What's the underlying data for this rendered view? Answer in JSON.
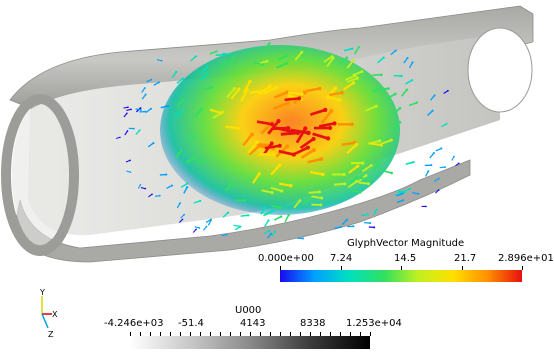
{
  "glyph_legend": {
    "title": "GlyphVector Magnitude",
    "labels": [
      "0.000e+00",
      "7.24",
      "14.5",
      "21.7",
      "2.896e+01"
    ],
    "colors": [
      "#1a0af0",
      "#00a0ff",
      "#00e0c0",
      "#30e060",
      "#c0f020",
      "#ffe000",
      "#ff9000",
      "#e81010"
    ]
  },
  "u_legend": {
    "title": "U000",
    "labels": [
      "-4.246e+03",
      "-51.4",
      "4143",
      "8338",
      "1.253e+04"
    ],
    "colors": [
      "#ffffff",
      "#c8c8c8",
      "#8a8a8a",
      "#3c3c3c",
      "#000000"
    ]
  },
  "axes": {
    "y_label": "Y",
    "x_label": "X",
    "z_label": "Z",
    "y_color": "#d8d800",
    "x_color": "#d80000",
    "z_color": "#00a0e0"
  },
  "scene": {
    "pipe_color": "#b9b9b6",
    "pipe_inner_color": "#d6d6d2",
    "background": "#ffffff"
  }
}
